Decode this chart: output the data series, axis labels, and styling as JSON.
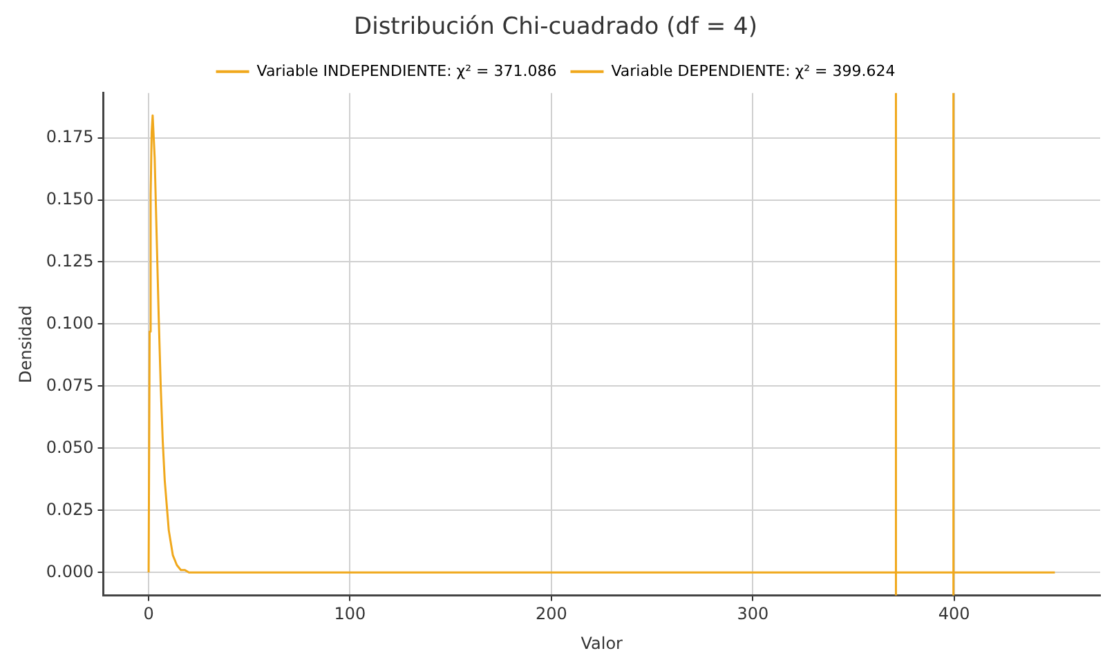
{
  "chart_data": {
    "type": "line",
    "title": "Distribución Chi-cuadrado (df = 4)",
    "xlabel": "Valor",
    "ylabel": "Densidad",
    "x": [
      0,
      0.5,
      1,
      1.5,
      2,
      3,
      4,
      5,
      6,
      7,
      8,
      10,
      12,
      14,
      16,
      18,
      20,
      25,
      30,
      50,
      100,
      150,
      200,
      250,
      300,
      350,
      400,
      450
    ],
    "series": [
      {
        "color": "#f0a81c",
        "values": [
          0,
          0.097,
          0.152,
          0.177,
          0.184,
          0.167,
          0.135,
          0.103,
          0.075,
          0.053,
          0.037,
          0.017,
          0.007,
          0.003,
          0.001,
          0.001,
          0,
          0,
          0,
          0,
          0,
          0,
          0,
          0,
          0,
          0,
          0,
          0
        ]
      }
    ],
    "xlim": [
      -22.5,
      472.5
    ],
    "xticks": [
      0,
      100,
      200,
      300,
      400
    ],
    "ylim": [
      -0.0092,
      0.193
    ],
    "yticks": [
      {
        "value": 0,
        "label": "0.000"
      },
      0.025,
      {
        "value": 0.05,
        "label": "0.050"
      },
      0.075,
      {
        "value": 0.1,
        "label": "0.100"
      },
      0.125,
      {
        "value": 0.15,
        "label": "0.150"
      },
      0.175
    ],
    "ref_lines": [
      {
        "axis": "x",
        "value": 371.086,
        "label": "Variable INDEPENDIENTE: χ² = 371.086",
        "color": "#f0a81c"
      },
      {
        "axis": "x",
        "value": 399.624,
        "label": "Variable DEPENDIENTE: χ² = 399.624",
        "color": "#f0a81c"
      }
    ],
    "grid": true,
    "legend": "top",
    "line_style": "solid",
    "marker": "none"
  }
}
